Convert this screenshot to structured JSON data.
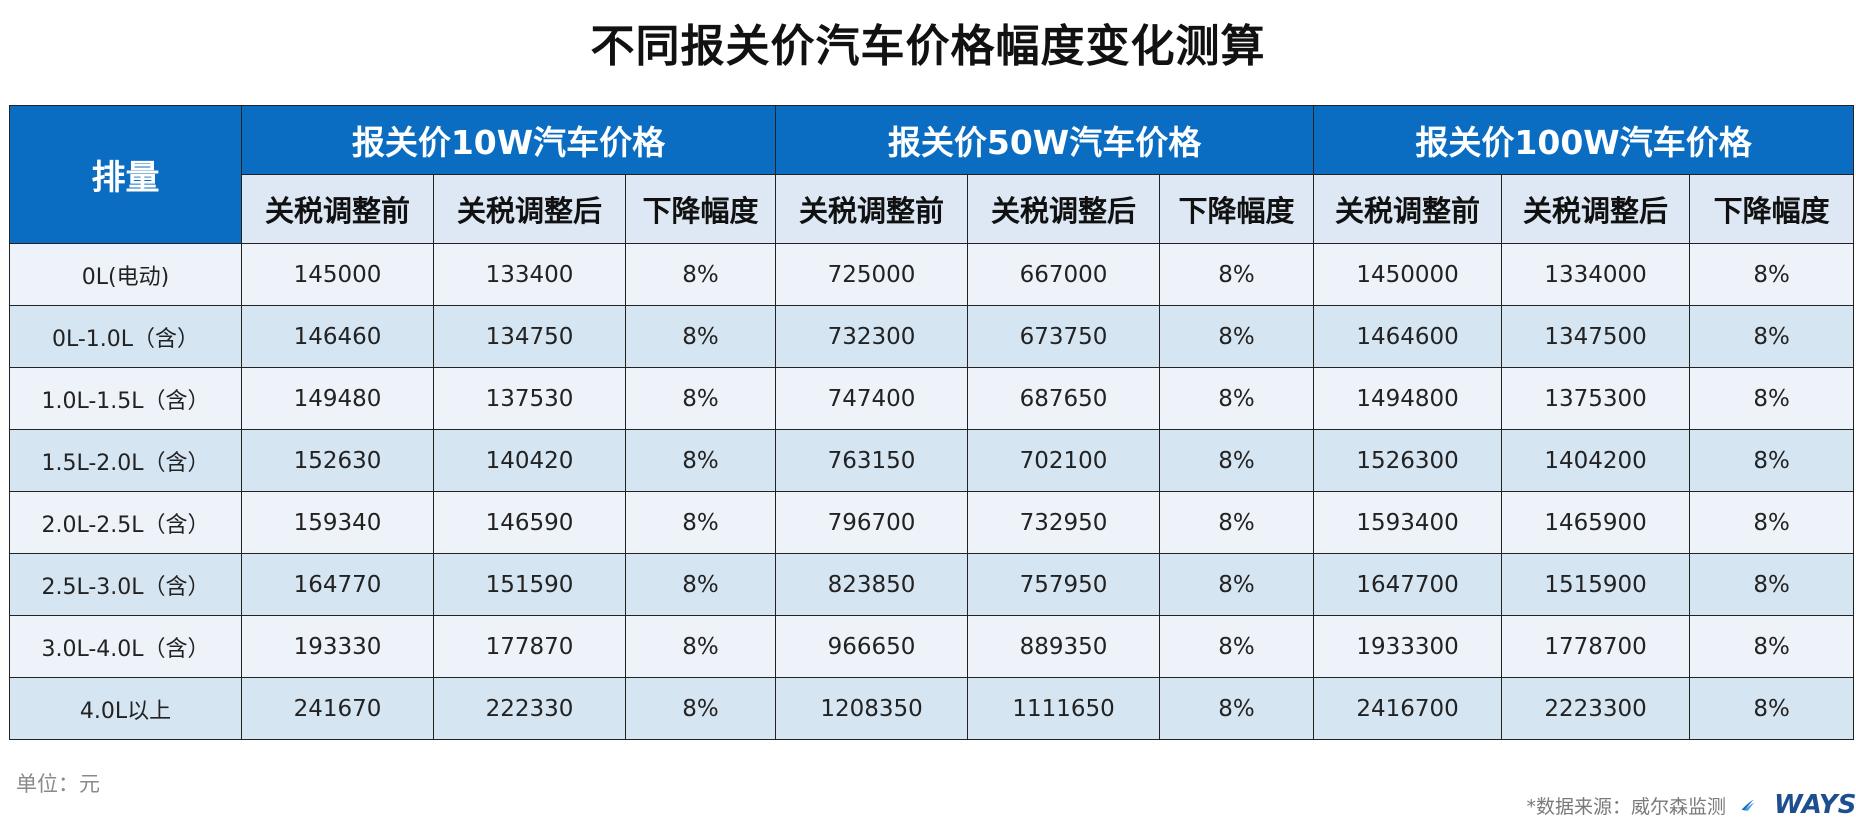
{
  "title": "不同报关价汽车价格幅度变化测算",
  "unit_note": "单位：元",
  "source_note": "*数据来源：威尔森监测",
  "logo_text": "WAYS",
  "chart_data": {
    "type": "table",
    "title": "不同报关价汽车价格幅度变化测算",
    "row_header": "排量",
    "groups": [
      "报关价10W汽车价格",
      "报关价50W汽车价格",
      "报关价100W汽车价格"
    ],
    "subheaders": [
      "关税调整前",
      "关税调整后",
      "下降幅度"
    ],
    "rows": [
      {
        "label": "0L(电动)",
        "values": [
          "145000",
          "133400",
          "8%",
          "725000",
          "667000",
          "8%",
          "1450000",
          "1334000",
          "8%"
        ]
      },
      {
        "label": "0L-1.0L（含）",
        "values": [
          "146460",
          "134750",
          "8%",
          "732300",
          "673750",
          "8%",
          "1464600",
          "1347500",
          "8%"
        ]
      },
      {
        "label": "1.0L-1.5L（含）",
        "values": [
          "149480",
          "137530",
          "8%",
          "747400",
          "687650",
          "8%",
          "1494800",
          "1375300",
          "8%"
        ]
      },
      {
        "label": "1.5L-2.0L（含）",
        "values": [
          "152630",
          "140420",
          "8%",
          "763150",
          "702100",
          "8%",
          "1526300",
          "1404200",
          "8%"
        ]
      },
      {
        "label": "2.0L-2.5L（含）",
        "values": [
          "159340",
          "146590",
          "8%",
          "796700",
          "732950",
          "8%",
          "1593400",
          "1465900",
          "8%"
        ]
      },
      {
        "label": "2.5L-3.0L（含）",
        "values": [
          "164770",
          "151590",
          "8%",
          "823850",
          "757950",
          "8%",
          "1647700",
          "1515900",
          "8%"
        ]
      },
      {
        "label": "3.0L-4.0L（含）",
        "values": [
          "193330",
          "177870",
          "8%",
          "966650",
          "889350",
          "8%",
          "1933300",
          "1778700",
          "8%"
        ]
      },
      {
        "label": "4.0L以上",
        "values": [
          "241670",
          "222330",
          "8%",
          "1208350",
          "1111650",
          "8%",
          "2416700",
          "2223300",
          "8%"
        ]
      }
    ]
  }
}
